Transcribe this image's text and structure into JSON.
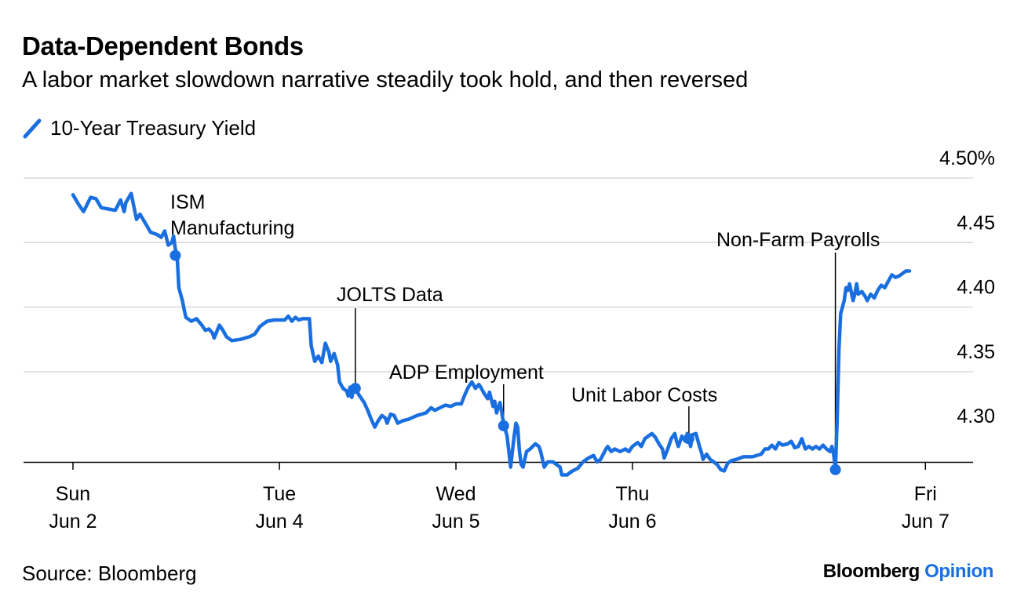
{
  "header": {
    "title": "Data-Dependent Bonds",
    "subtitle": "A labor market slowdown narrative steadily took hold, and then reversed"
  },
  "footer": {
    "source": "Source: Bloomberg",
    "brand_main": "Bloomberg",
    "brand_accent": "Opinion"
  },
  "colors": {
    "line": "#1a6fe0",
    "grid": "#d9d9d9",
    "axis": "#000000"
  },
  "chart_data": {
    "type": "line",
    "title": "Data-Dependent Bonds",
    "subtitle": "A labor market slowdown narrative steadily took hold, and then reversed",
    "ylim": [
      4.28,
      4.5
    ],
    "xlim": [
      -0.28,
      5.1
    ],
    "y_ticks": [
      {
        "value": 4.3,
        "label": "4.30"
      },
      {
        "value": 4.35,
        "label": "4.35"
      },
      {
        "value": 4.4,
        "label": "4.40"
      },
      {
        "value": 4.45,
        "label": "4.45"
      },
      {
        "value": 4.5,
        "label": "4.50%"
      }
    ],
    "x_ticks": [
      {
        "x": 0.0,
        "line1": "Sun",
        "line2": "Jun 2"
      },
      {
        "x": 1.17,
        "line1": "Tue",
        "line2": "Jun 4"
      },
      {
        "x": 2.17,
        "line1": "Wed",
        "line2": "Jun 5"
      },
      {
        "x": 3.17,
        "line1": "Thu",
        "line2": "Jun 6"
      },
      {
        "x": 4.83,
        "line1": "Fri",
        "line2": "Jun 7"
      }
    ],
    "grid": true,
    "series": [
      {
        "name": "10-Year Treasury Yield",
        "points": [
          [
            0.0,
            4.487
          ],
          [
            0.03,
            4.48
          ],
          [
            0.06,
            4.474
          ],
          [
            0.1,
            4.485
          ],
          [
            0.13,
            4.484
          ],
          [
            0.16,
            4.477
          ],
          [
            0.2,
            4.476
          ],
          [
            0.24,
            4.475
          ],
          [
            0.27,
            4.483
          ],
          [
            0.29,
            4.474
          ],
          [
            0.3,
            4.481
          ],
          [
            0.33,
            4.488
          ],
          [
            0.36,
            4.468
          ],
          [
            0.38,
            4.472
          ],
          [
            0.41,
            4.465
          ],
          [
            0.44,
            4.458
          ],
          [
            0.48,
            4.456
          ],
          [
            0.5,
            4.454
          ],
          [
            0.52,
            4.459
          ],
          [
            0.54,
            4.448
          ],
          [
            0.56,
            4.45
          ],
          [
            0.57,
            4.455
          ],
          [
            0.58,
            4.445
          ],
          [
            0.59,
            4.44
          ],
          [
            0.6,
            4.415
          ],
          [
            0.62,
            4.405
          ],
          [
            0.63,
            4.398
          ],
          [
            0.64,
            4.392
          ],
          [
            0.67,
            4.389
          ],
          [
            0.7,
            4.391
          ],
          [
            0.73,
            4.386
          ],
          [
            0.75,
            4.382
          ],
          [
            0.77,
            4.383
          ],
          [
            0.79,
            4.38
          ],
          [
            0.8,
            4.376
          ],
          [
            0.83,
            4.386
          ],
          [
            0.85,
            4.382
          ],
          [
            0.87,
            4.377
          ],
          [
            0.9,
            4.374
          ],
          [
            0.95,
            4.375
          ],
          [
            1.0,
            4.377
          ],
          [
            1.03,
            4.379
          ],
          [
            1.06,
            4.385
          ],
          [
            1.1,
            4.389
          ],
          [
            1.14,
            4.39
          ],
          [
            1.17,
            4.39
          ],
          [
            1.2,
            4.39
          ],
          [
            1.22,
            4.393
          ],
          [
            1.24,
            4.389
          ],
          [
            1.26,
            4.392
          ],
          [
            1.28,
            4.39
          ],
          [
            1.3,
            4.391
          ],
          [
            1.34,
            4.391
          ],
          [
            1.35,
            4.37
          ],
          [
            1.37,
            4.358
          ],
          [
            1.39,
            4.362
          ],
          [
            1.41,
            4.357
          ],
          [
            1.43,
            4.372
          ],
          [
            1.45,
            4.365
          ],
          [
            1.46,
            4.358
          ],
          [
            1.48,
            4.364
          ],
          [
            1.5,
            4.355
          ],
          [
            1.51,
            4.342
          ],
          [
            1.53,
            4.337
          ],
          [
            1.55,
            4.335
          ],
          [
            1.56,
            4.331
          ],
          [
            1.57,
            4.338
          ],
          [
            1.58,
            4.33
          ],
          [
            1.59,
            4.336
          ],
          [
            1.6,
            4.337
          ],
          [
            1.62,
            4.332
          ],
          [
            1.65,
            4.326
          ],
          [
            1.67,
            4.32
          ],
          [
            1.69,
            4.313
          ],
          [
            1.71,
            4.307
          ],
          [
            1.73,
            4.312
          ],
          [
            1.75,
            4.316
          ],
          [
            1.77,
            4.314
          ],
          [
            1.78,
            4.31
          ],
          [
            1.8,
            4.317
          ],
          [
            1.82,
            4.316
          ],
          [
            1.84,
            4.31
          ],
          [
            1.87,
            4.312
          ],
          [
            1.9,
            4.313
          ],
          [
            1.95,
            4.316
          ],
          [
            2.0,
            4.318
          ],
          [
            2.03,
            4.322
          ],
          [
            2.05,
            4.32
          ],
          [
            2.08,
            4.322
          ],
          [
            2.11,
            4.324
          ],
          [
            2.14,
            4.323
          ],
          [
            2.17,
            4.325
          ],
          [
            2.2,
            4.325
          ],
          [
            2.22,
            4.332
          ],
          [
            2.24,
            4.338
          ],
          [
            2.26,
            4.342
          ],
          [
            2.28,
            4.337
          ],
          [
            2.3,
            4.34
          ],
          [
            2.31,
            4.338
          ],
          [
            2.33,
            4.333
          ],
          [
            2.35,
            4.329
          ],
          [
            2.36,
            4.334
          ],
          [
            2.38,
            4.323
          ],
          [
            2.39,
            4.327
          ],
          [
            2.4,
            4.318
          ],
          [
            2.42,
            4.326
          ],
          [
            2.43,
            4.318
          ],
          [
            2.44,
            4.31
          ],
          [
            2.46,
            4.3
          ],
          [
            2.47,
            4.288
          ],
          [
            2.48,
            4.276
          ],
          [
            2.5,
            4.3
          ],
          [
            2.51,
            4.31
          ],
          [
            2.52,
            4.307
          ],
          [
            2.53,
            4.288
          ],
          [
            2.54,
            4.278
          ],
          [
            2.55,
            4.276
          ],
          [
            2.56,
            4.282
          ],
          [
            2.57,
            4.288
          ],
          [
            2.59,
            4.29
          ],
          [
            2.62,
            4.294
          ],
          [
            2.64,
            4.292
          ],
          [
            2.65,
            4.288
          ],
          [
            2.67,
            4.276
          ],
          [
            2.69,
            4.28
          ],
          [
            2.72,
            4.28
          ],
          [
            2.74,
            4.278
          ],
          [
            2.76,
            4.276
          ],
          [
            2.77,
            4.27
          ],
          [
            2.8,
            4.27
          ],
          [
            2.83,
            4.273
          ],
          [
            2.86,
            4.275
          ],
          [
            2.89,
            4.28
          ],
          [
            2.92,
            4.283
          ],
          [
            2.95,
            4.285
          ],
          [
            2.97,
            4.28
          ],
          [
            2.99,
            4.282
          ],
          [
            3.02,
            4.29
          ],
          [
            3.03,
            4.292
          ],
          [
            3.05,
            4.288
          ],
          [
            3.07,
            4.29
          ],
          [
            3.1,
            4.288
          ],
          [
            3.13,
            4.29
          ],
          [
            3.15,
            4.288
          ],
          [
            3.17,
            4.292
          ],
          [
            3.2,
            4.295
          ],
          [
            3.22,
            4.292
          ],
          [
            3.24,
            4.298
          ],
          [
            3.26,
            4.3
          ],
          [
            3.28,
            4.302
          ],
          [
            3.3,
            4.299
          ],
          [
            3.32,
            4.294
          ],
          [
            3.34,
            4.29
          ],
          [
            3.35,
            4.283
          ],
          [
            3.37,
            4.29
          ],
          [
            3.39,
            4.298
          ],
          [
            3.41,
            4.302
          ],
          [
            3.42,
            4.296
          ],
          [
            3.43,
            4.292
          ],
          [
            3.45,
            4.3
          ],
          [
            3.47,
            4.296
          ],
          [
            3.48,
            4.302
          ],
          [
            3.49,
            4.298
          ],
          [
            3.5,
            4.292
          ],
          [
            3.51,
            4.301
          ],
          [
            3.53,
            4.302
          ],
          [
            3.55,
            4.292
          ],
          [
            3.56,
            4.288
          ],
          [
            3.57,
            4.282
          ],
          [
            3.59,
            4.286
          ],
          [
            3.61,
            4.282
          ],
          [
            3.63,
            4.28
          ],
          [
            3.65,
            4.278
          ],
          [
            3.67,
            4.274
          ],
          [
            3.69,
            4.273
          ],
          [
            3.71,
            4.279
          ],
          [
            3.73,
            4.281
          ],
          [
            3.76,
            4.282
          ],
          [
            3.8,
            4.284
          ],
          [
            3.85,
            4.284
          ],
          [
            3.9,
            4.286
          ],
          [
            3.92,
            4.29
          ],
          [
            3.94,
            4.29
          ],
          [
            3.96,
            4.293
          ],
          [
            3.98,
            4.29
          ],
          [
            4.0,
            4.295
          ],
          [
            4.02,
            4.293
          ],
          [
            4.05,
            4.294
          ],
          [
            4.07,
            4.296
          ],
          [
            4.09,
            4.291
          ],
          [
            4.11,
            4.292
          ],
          [
            4.13,
            4.298
          ],
          [
            4.15,
            4.29
          ],
          [
            4.17,
            4.292
          ],
          [
            4.19,
            4.29
          ],
          [
            4.21,
            4.292
          ],
          [
            4.23,
            4.29
          ],
          [
            4.25,
            4.293
          ],
          [
            4.27,
            4.29
          ],
          [
            4.29,
            4.288
          ],
          [
            4.3,
            4.292
          ],
          [
            4.31,
            4.286
          ],
          [
            4.32,
            4.274
          ],
          [
            4.33,
            4.312
          ],
          [
            4.34,
            4.367
          ],
          [
            4.35,
            4.395
          ],
          [
            4.36,
            4.4
          ],
          [
            4.37,
            4.405
          ],
          [
            4.38,
            4.415
          ],
          [
            4.39,
            4.413
          ],
          [
            4.4,
            4.418
          ],
          [
            4.42,
            4.405
          ],
          [
            4.43,
            4.41
          ],
          [
            4.44,
            4.418
          ],
          [
            4.45,
            4.41
          ],
          [
            4.47,
            4.412
          ],
          [
            4.49,
            4.408
          ],
          [
            4.5,
            4.405
          ],
          [
            4.52,
            4.41
          ],
          [
            4.54,
            4.407
          ],
          [
            4.56,
            4.413
          ],
          [
            4.58,
            4.417
          ],
          [
            4.6,
            4.415
          ],
          [
            4.62,
            4.42
          ],
          [
            4.64,
            4.425
          ],
          [
            4.66,
            4.423
          ],
          [
            4.68,
            4.424
          ],
          [
            4.7,
            4.426
          ],
          [
            4.72,
            4.428
          ],
          [
            4.74,
            4.428
          ]
        ]
      }
    ],
    "annotations": [
      {
        "label_lines": [
          "ISM",
          "Manufacturing"
        ],
        "x": 0.58,
        "y": 4.44,
        "leader": false
      },
      {
        "label_lines": [
          "JOLTS Data"
        ],
        "x": 1.6,
        "y": 4.337,
        "leader": true
      },
      {
        "label_lines": [
          "ADP Employment"
        ],
        "x": 2.44,
        "y": 4.308,
        "leader": true
      },
      {
        "label_lines": [
          "Unit Labor Costs"
        ],
        "x": 3.49,
        "y": 4.298,
        "leader": true
      },
      {
        "label_lines": [
          "Non-Farm Payrolls"
        ],
        "x": 4.32,
        "y": 4.274,
        "leader": true
      }
    ]
  }
}
